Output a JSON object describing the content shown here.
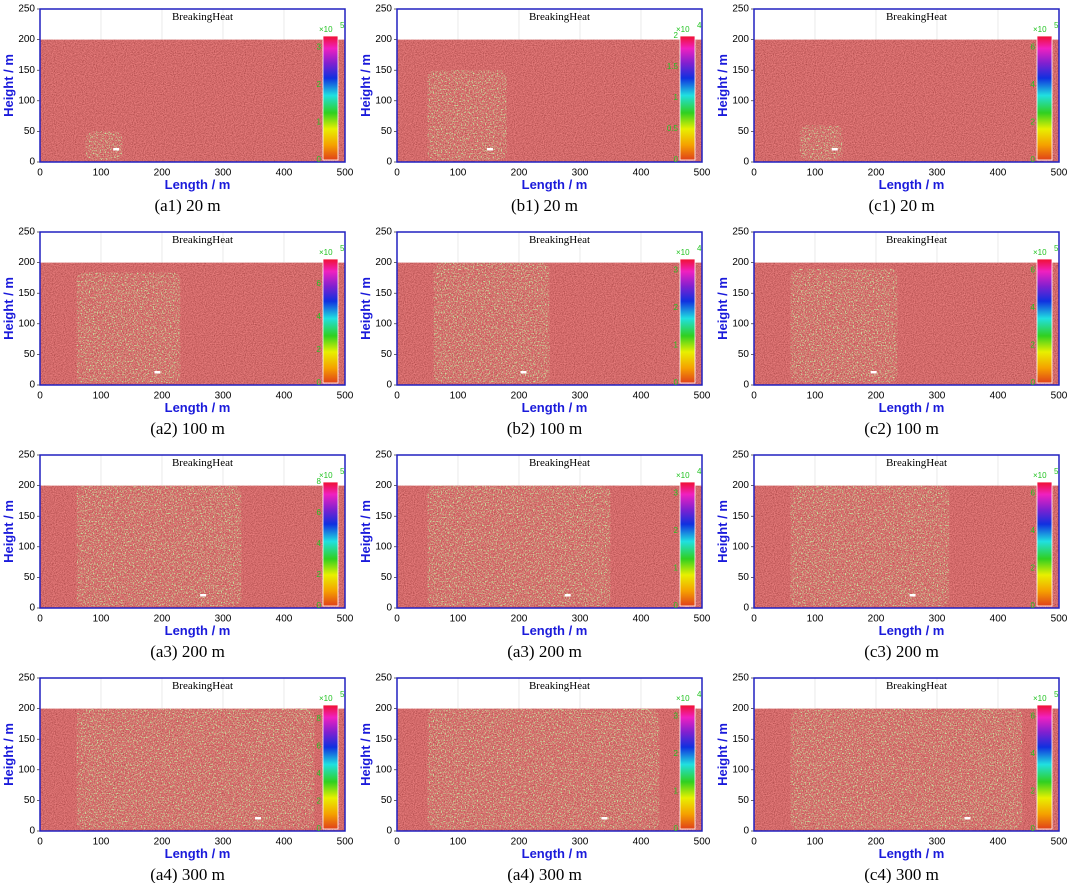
{
  "figure": {
    "panels": [
      {
        "title": "BreakingHeat",
        "xlabel": "Length / m",
        "ylabel": "Height / m",
        "xlim": [
          0,
          500
        ],
        "ylim": [
          0,
          250
        ],
        "xticks": [
          0,
          100,
          200,
          300,
          400,
          500
        ],
        "yticks": [
          0,
          50,
          100,
          150,
          200,
          250
        ],
        "colorbar": {
          "label": "×10",
          "exponent": "5",
          "lim": [
            0,
            3.3
          ],
          "ticks": [
            0,
            1,
            2,
            3
          ]
        },
        "caption": "(a1) 20 m"
      },
      {
        "title": "BreakingHeat",
        "xlabel": "Length / m",
        "ylabel": "Height / m",
        "xlim": [
          0,
          500
        ],
        "ylim": [
          0,
          250
        ],
        "xticks": [
          0,
          100,
          200,
          300,
          400,
          500
        ],
        "yticks": [
          0,
          50,
          100,
          150,
          200,
          250
        ],
        "colorbar": {
          "label": "×10",
          "exponent": "4",
          "lim": [
            0,
            2
          ],
          "ticks": [
            0,
            0.5,
            1,
            1.5,
            2
          ]
        },
        "caption": "(b1) 20 m"
      },
      {
        "title": "BreakingHeat",
        "xlabel": "Length / m",
        "ylabel": "Height / m",
        "xlim": [
          0,
          500
        ],
        "ylim": [
          0,
          250
        ],
        "xticks": [
          0,
          100,
          200,
          300,
          400,
          500
        ],
        "yticks": [
          0,
          50,
          100,
          150,
          200,
          250
        ],
        "colorbar": {
          "label": "×10",
          "exponent": "5",
          "lim": [
            0,
            6.6
          ],
          "ticks": [
            0,
            2,
            4,
            6
          ]
        },
        "caption": "(c1) 20 m"
      },
      {
        "title": "BreakingHeat",
        "xlabel": "Length / m",
        "ylabel": "Height / m",
        "xlim": [
          0,
          500
        ],
        "ylim": [
          0,
          250
        ],
        "xticks": [
          0,
          100,
          200,
          300,
          400,
          500
        ],
        "yticks": [
          0,
          50,
          100,
          150,
          200,
          250
        ],
        "colorbar": {
          "label": "×10",
          "exponent": "5",
          "lim": [
            0,
            7.5
          ],
          "ticks": [
            0,
            2,
            4,
            6
          ]
        },
        "caption": "(a2) 100 m"
      },
      {
        "title": "BreakingHeat",
        "xlabel": "Length / m",
        "ylabel": "Height / m",
        "xlim": [
          0,
          500
        ],
        "ylim": [
          0,
          250
        ],
        "xticks": [
          0,
          100,
          200,
          300,
          400,
          500
        ],
        "yticks": [
          0,
          50,
          100,
          150,
          200,
          250
        ],
        "colorbar": {
          "label": "×10",
          "exponent": "4",
          "lim": [
            0,
            3.3
          ],
          "ticks": [
            0,
            1,
            2,
            3
          ]
        },
        "caption": "(b2) 100 m"
      },
      {
        "title": "BreakingHeat",
        "xlabel": "Length / m",
        "ylabel": "Height / m",
        "xlim": [
          0,
          500
        ],
        "ylim": [
          0,
          250
        ],
        "xticks": [
          0,
          100,
          200,
          300,
          400,
          500
        ],
        "yticks": [
          0,
          50,
          100,
          150,
          200,
          250
        ],
        "colorbar": {
          "label": "×10",
          "exponent": "5",
          "lim": [
            0,
            6.6
          ],
          "ticks": [
            0,
            2,
            4,
            6
          ]
        },
        "caption": "(c2) 100 m"
      },
      {
        "title": "BreakingHeat",
        "xlabel": "Length / m",
        "ylabel": "Height / m",
        "xlim": [
          0,
          500
        ],
        "ylim": [
          0,
          250
        ],
        "xticks": [
          0,
          100,
          200,
          300,
          400,
          500
        ],
        "yticks": [
          0,
          50,
          100,
          150,
          200,
          250
        ],
        "colorbar": {
          "label": "×10",
          "exponent": "5",
          "lim": [
            0,
            8
          ],
          "ticks": [
            0,
            2,
            4,
            6,
            8
          ]
        },
        "caption": "(a3) 200 m"
      },
      {
        "title": "BreakingHeat",
        "xlabel": "Length / m",
        "ylabel": "Height / m",
        "xlim": [
          0,
          500
        ],
        "ylim": [
          0,
          250
        ],
        "xticks": [
          0,
          100,
          200,
          300,
          400,
          500
        ],
        "yticks": [
          0,
          50,
          100,
          150,
          200,
          250
        ],
        "colorbar": {
          "label": "×10",
          "exponent": "4",
          "lim": [
            0,
            3.3
          ],
          "ticks": [
            0,
            1,
            2,
            3
          ]
        },
        "caption": "(a3) 200 m"
      },
      {
        "title": "BreakingHeat",
        "xlabel": "Length / m",
        "ylabel": "Height / m",
        "xlim": [
          0,
          500
        ],
        "ylim": [
          0,
          250
        ],
        "xticks": [
          0,
          100,
          200,
          300,
          400,
          500
        ],
        "yticks": [
          0,
          50,
          100,
          150,
          200,
          250
        ],
        "colorbar": {
          "label": "×10",
          "exponent": "5",
          "lim": [
            0,
            6.6
          ],
          "ticks": [
            0,
            2,
            4,
            6
          ]
        },
        "caption": "(c3) 200 m"
      },
      {
        "title": "BreakingHeat",
        "xlabel": "Length / m",
        "ylabel": "Height / m",
        "xlim": [
          0,
          500
        ],
        "ylim": [
          0,
          250
        ],
        "xticks": [
          0,
          100,
          200,
          300,
          400,
          500
        ],
        "yticks": [
          0,
          50,
          100,
          150,
          200,
          250
        ],
        "colorbar": {
          "label": "×10",
          "exponent": "5",
          "lim": [
            0,
            9
          ],
          "ticks": [
            0,
            2,
            4,
            6,
            8
          ]
        },
        "caption": "(a4) 300 m"
      },
      {
        "title": "BreakingHeat",
        "xlabel": "Length / m",
        "ylabel": "Height / m",
        "xlim": [
          0,
          500
        ],
        "ylim": [
          0,
          250
        ],
        "xticks": [
          0,
          100,
          200,
          300,
          400,
          500
        ],
        "yticks": [
          0,
          50,
          100,
          150,
          200,
          250
        ],
        "colorbar": {
          "label": "×10",
          "exponent": "4",
          "lim": [
            0,
            3.3
          ],
          "ticks": [
            0,
            1,
            2,
            3
          ]
        },
        "caption": "(a4) 300 m"
      },
      {
        "title": "BreakingHeat",
        "xlabel": "Length / m",
        "ylabel": "Height / m",
        "xlim": [
          0,
          500
        ],
        "ylim": [
          0,
          250
        ],
        "xticks": [
          0,
          100,
          200,
          300,
          400,
          500
        ],
        "yticks": [
          0,
          50,
          100,
          150,
          200,
          250
        ],
        "colorbar": {
          "label": "×10",
          "exponent": "5",
          "lim": [
            0,
            6.6
          ],
          "ticks": [
            0,
            2,
            4,
            6
          ]
        },
        "caption": "(c4) 300 m"
      }
    ]
  }
}
